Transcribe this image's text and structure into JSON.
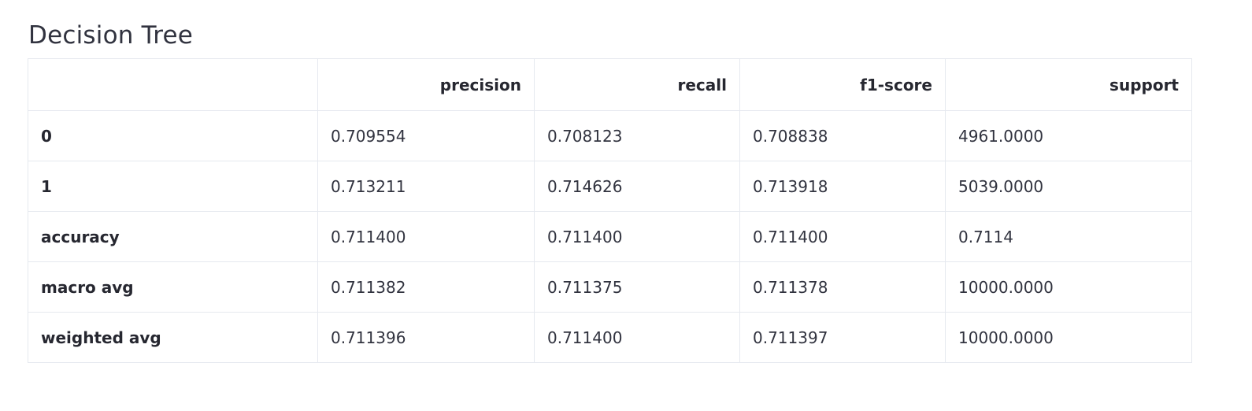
{
  "title": "Decision Tree",
  "table": {
    "index_header": "",
    "columns": [
      "precision",
      "recall",
      "f1-score",
      "support"
    ],
    "rows": [
      {
        "label": "0",
        "values": [
          "0.709554",
          "0.708123",
          "0.708838",
          "4961.0000"
        ]
      },
      {
        "label": "1",
        "values": [
          "0.713211",
          "0.714626",
          "0.713918",
          "5039.0000"
        ]
      },
      {
        "label": "accuracy",
        "values": [
          "0.711400",
          "0.711400",
          "0.711400",
          "0.7114"
        ]
      },
      {
        "label": "macro avg",
        "values": [
          "0.711382",
          "0.711375",
          "0.711378",
          "10000.0000"
        ]
      },
      {
        "label": "weighted avg",
        "values": [
          "0.711396",
          "0.711400",
          "0.711397",
          "10000.0000"
        ]
      }
    ]
  }
}
